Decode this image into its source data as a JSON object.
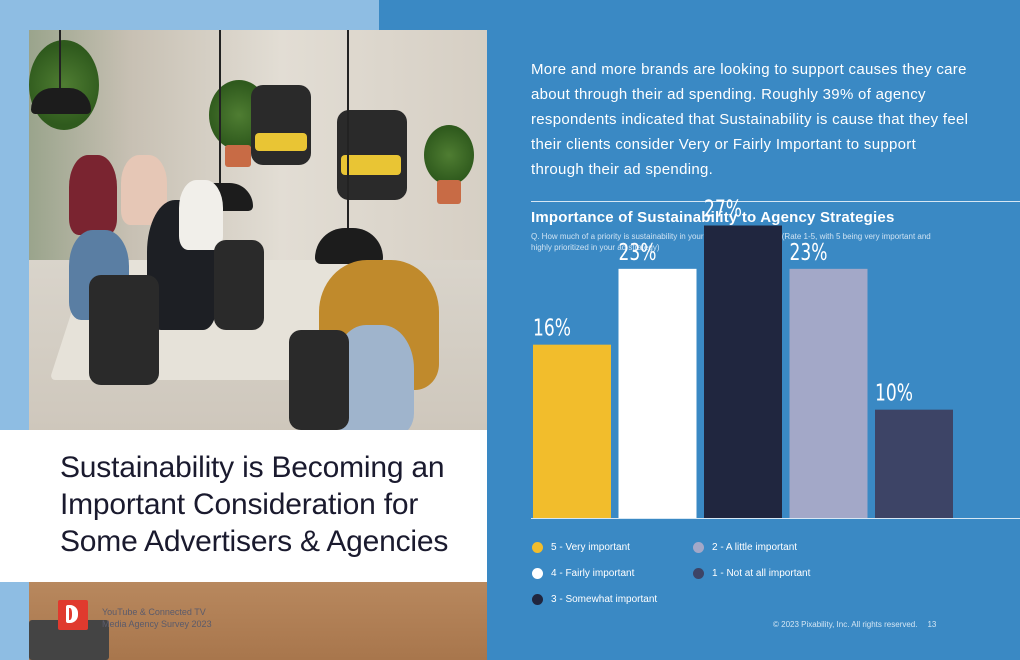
{
  "intro": {
    "text": "More and more brands are looking to support causes they care about through their ad spending. Roughly 39% of agency respondents indicated that Sustainability is cause that they feel their clients consider Very or Fairly Important to support through their ad spending."
  },
  "headline": "Sustainability is Becoming an Important Consideration for Some Advertisers & Agencies",
  "footer": {
    "caption_line1": "YouTube & Connected TV",
    "caption_line2": "Media Agency Survey 2023",
    "copyright": "© 2023 Pixability, Inc. All rights reserved.",
    "page_number": "13"
  },
  "chart_data": {
    "type": "bar",
    "title": "Importance of Sustainability to Agency Strategies",
    "subtitle": "Q. How much of a priority is sustainability in your advertising strategy? (Rate 1-5, with 5 being very important and highly prioritized in your ad strategy)",
    "categories": [
      "5 - Very important",
      "4 - Fairly important",
      "3 - Somewhat important",
      "2 - A little important",
      "1 - Not at all important"
    ],
    "values": [
      16,
      23,
      27,
      23,
      10
    ],
    "value_labels": [
      "16%",
      "23%",
      "27%",
      "23%",
      "10%"
    ],
    "colors": [
      "#f2bd2c",
      "#ffffff",
      "#20263f",
      "#a3a8c8",
      "#3d4466"
    ],
    "ylim": [
      0,
      30
    ],
    "xlabel": "",
    "ylabel": "",
    "grid": false,
    "legend_position": "bottom"
  },
  "legend": [
    {
      "label": "5 - Very important",
      "color": "#f2bd2c"
    },
    {
      "label": "4 - Fairly important",
      "color": "#ffffff"
    },
    {
      "label": "3 - Somewhat important",
      "color": "#20263f"
    },
    {
      "label": "2 - A little important",
      "color": "#a3a8c8"
    },
    {
      "label": "1 - Not at all important",
      "color": "#3d4466"
    }
  ],
  "colors": {
    "background": "#3a89c4",
    "left_panel": "#8ebde3",
    "brand_red": "#e03a2e"
  },
  "icons": {
    "logo": "pixability-logo-icon"
  }
}
